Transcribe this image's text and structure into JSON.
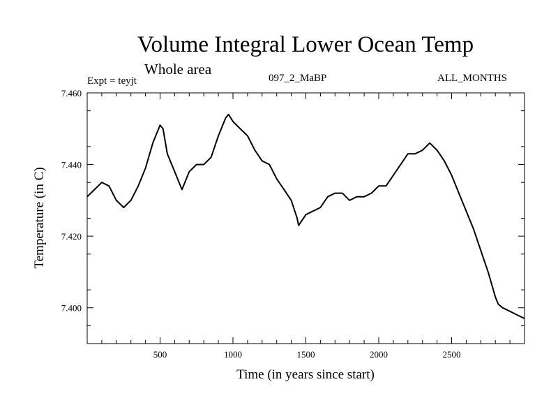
{
  "chart_data": {
    "type": "line",
    "title": "Volume Integral Lower Ocean Temp",
    "subtitle": "Whole area",
    "annotations": {
      "experiment": "Expt = teyjt",
      "run": "097_2_MaBP",
      "months": "ALL_MONTHS"
    },
    "xlabel": "Time (in years since start)",
    "ylabel": "Temperature (in C)",
    "xlim": [
      0,
      3000
    ],
    "ylim": [
      7.39,
      7.46
    ],
    "xticks": [
      500,
      1000,
      1500,
      2000,
      2500
    ],
    "xtick_labels": [
      "500",
      "1000",
      "1500",
      "2000",
      "2500"
    ],
    "yticks": [
      7.4,
      7.42,
      7.44,
      7.46
    ],
    "ytick_labels": [
      "7.400",
      "7.420",
      "7.440",
      "7.460"
    ],
    "series": [
      {
        "name": "Volume Integral Lower Ocean Temp",
        "color": "#000000",
        "x": [
          0,
          50,
          100,
          150,
          200,
          250,
          300,
          350,
          400,
          450,
          500,
          520,
          550,
          600,
          650,
          700,
          750,
          800,
          850,
          900,
          950,
          970,
          1000,
          1050,
          1100,
          1150,
          1200,
          1250,
          1300,
          1350,
          1400,
          1440,
          1450,
          1500,
          1550,
          1600,
          1650,
          1700,
          1750,
          1800,
          1850,
          1900,
          1950,
          2000,
          2050,
          2100,
          2150,
          2200,
          2250,
          2300,
          2350,
          2400,
          2450,
          2500,
          2550,
          2600,
          2650,
          2700,
          2750,
          2800,
          2820,
          2850,
          2900,
          2950,
          3000
        ],
        "values": [
          7.431,
          7.433,
          7.435,
          7.434,
          7.43,
          7.428,
          7.43,
          7.434,
          7.439,
          7.446,
          7.451,
          7.45,
          7.443,
          7.438,
          7.433,
          7.438,
          7.44,
          7.44,
          7.442,
          7.448,
          7.453,
          7.454,
          7.452,
          7.45,
          7.448,
          7.444,
          7.441,
          7.44,
          7.436,
          7.433,
          7.43,
          7.425,
          7.423,
          7.426,
          7.427,
          7.428,
          7.431,
          7.432,
          7.432,
          7.43,
          7.431,
          7.431,
          7.432,
          7.434,
          7.434,
          7.437,
          7.44,
          7.443,
          7.443,
          7.444,
          7.446,
          7.444,
          7.441,
          7.437,
          7.432,
          7.427,
          7.422,
          7.416,
          7.41,
          7.403,
          7.401,
          7.4,
          7.399,
          7.398,
          7.397
        ]
      }
    ]
  }
}
